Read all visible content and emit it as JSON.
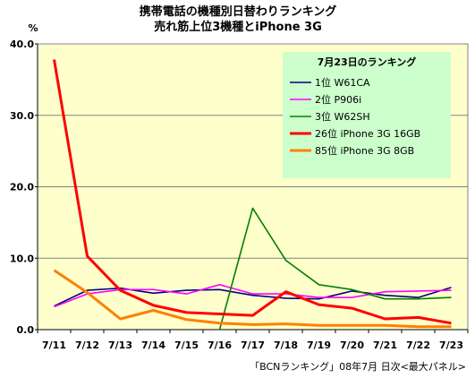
{
  "chart_data": {
    "type": "line",
    "title_lines": [
      "携帯電話の機種別日替わりランキング",
      "売れ筋上位3機種とiPhone 3G"
    ],
    "ylabel": "%",
    "ylim": [
      0,
      40
    ],
    "yticks": [
      "0.0",
      "10.0",
      "20.0",
      "30.0",
      "40.0"
    ],
    "categories": [
      "7/11",
      "7/12",
      "7/13",
      "7/14",
      "7/15",
      "7/16",
      "7/17",
      "7/18",
      "7/19",
      "7/20",
      "7/21",
      "7/22",
      "7/23"
    ],
    "grid": true,
    "legend_title": "7月23日のランキング",
    "legend_placement": "top-right",
    "series": [
      {
        "name": "1位 W61CA",
        "color": "#000080",
        "values": [
          3.3,
          5.5,
          5.8,
          5.1,
          5.5,
          5.6,
          4.8,
          4.4,
          4.3,
          5.4,
          4.8,
          4.5,
          5.9
        ]
      },
      {
        "name": "2位 P906i",
        "color": "#ff00ff",
        "values": [
          3.2,
          5.0,
          5.6,
          5.6,
          5.0,
          6.3,
          5.0,
          5.0,
          4.5,
          4.5,
          5.3,
          5.4,
          5.5
        ]
      },
      {
        "name": "3位 W62SH",
        "color": "#008000",
        "values": [
          null,
          null,
          null,
          null,
          null,
          0.0,
          17.0,
          9.7,
          6.3,
          5.6,
          4.3,
          4.3,
          4.5
        ]
      },
      {
        "name": "26位 iPhone 3G 16GB",
        "color": "#ff0000",
        "values": [
          37.8,
          10.3,
          5.5,
          3.4,
          2.4,
          2.2,
          2.0,
          5.3,
          3.5,
          3.0,
          1.5,
          1.7,
          0.9
        ]
      },
      {
        "name": "85位 iPhone 3G 8GB",
        "color": "#ff8000",
        "values": [
          8.3,
          5.2,
          1.5,
          2.7,
          1.4,
          0.9,
          0.7,
          0.8,
          0.6,
          0.6,
          0.6,
          0.4,
          0.4
        ]
      }
    ],
    "plot_bg": "#ffffcc",
    "legend_bg": "#ccffcc",
    "source_note": "「BCNランキング」08年7月 日次<最大パネル>"
  }
}
